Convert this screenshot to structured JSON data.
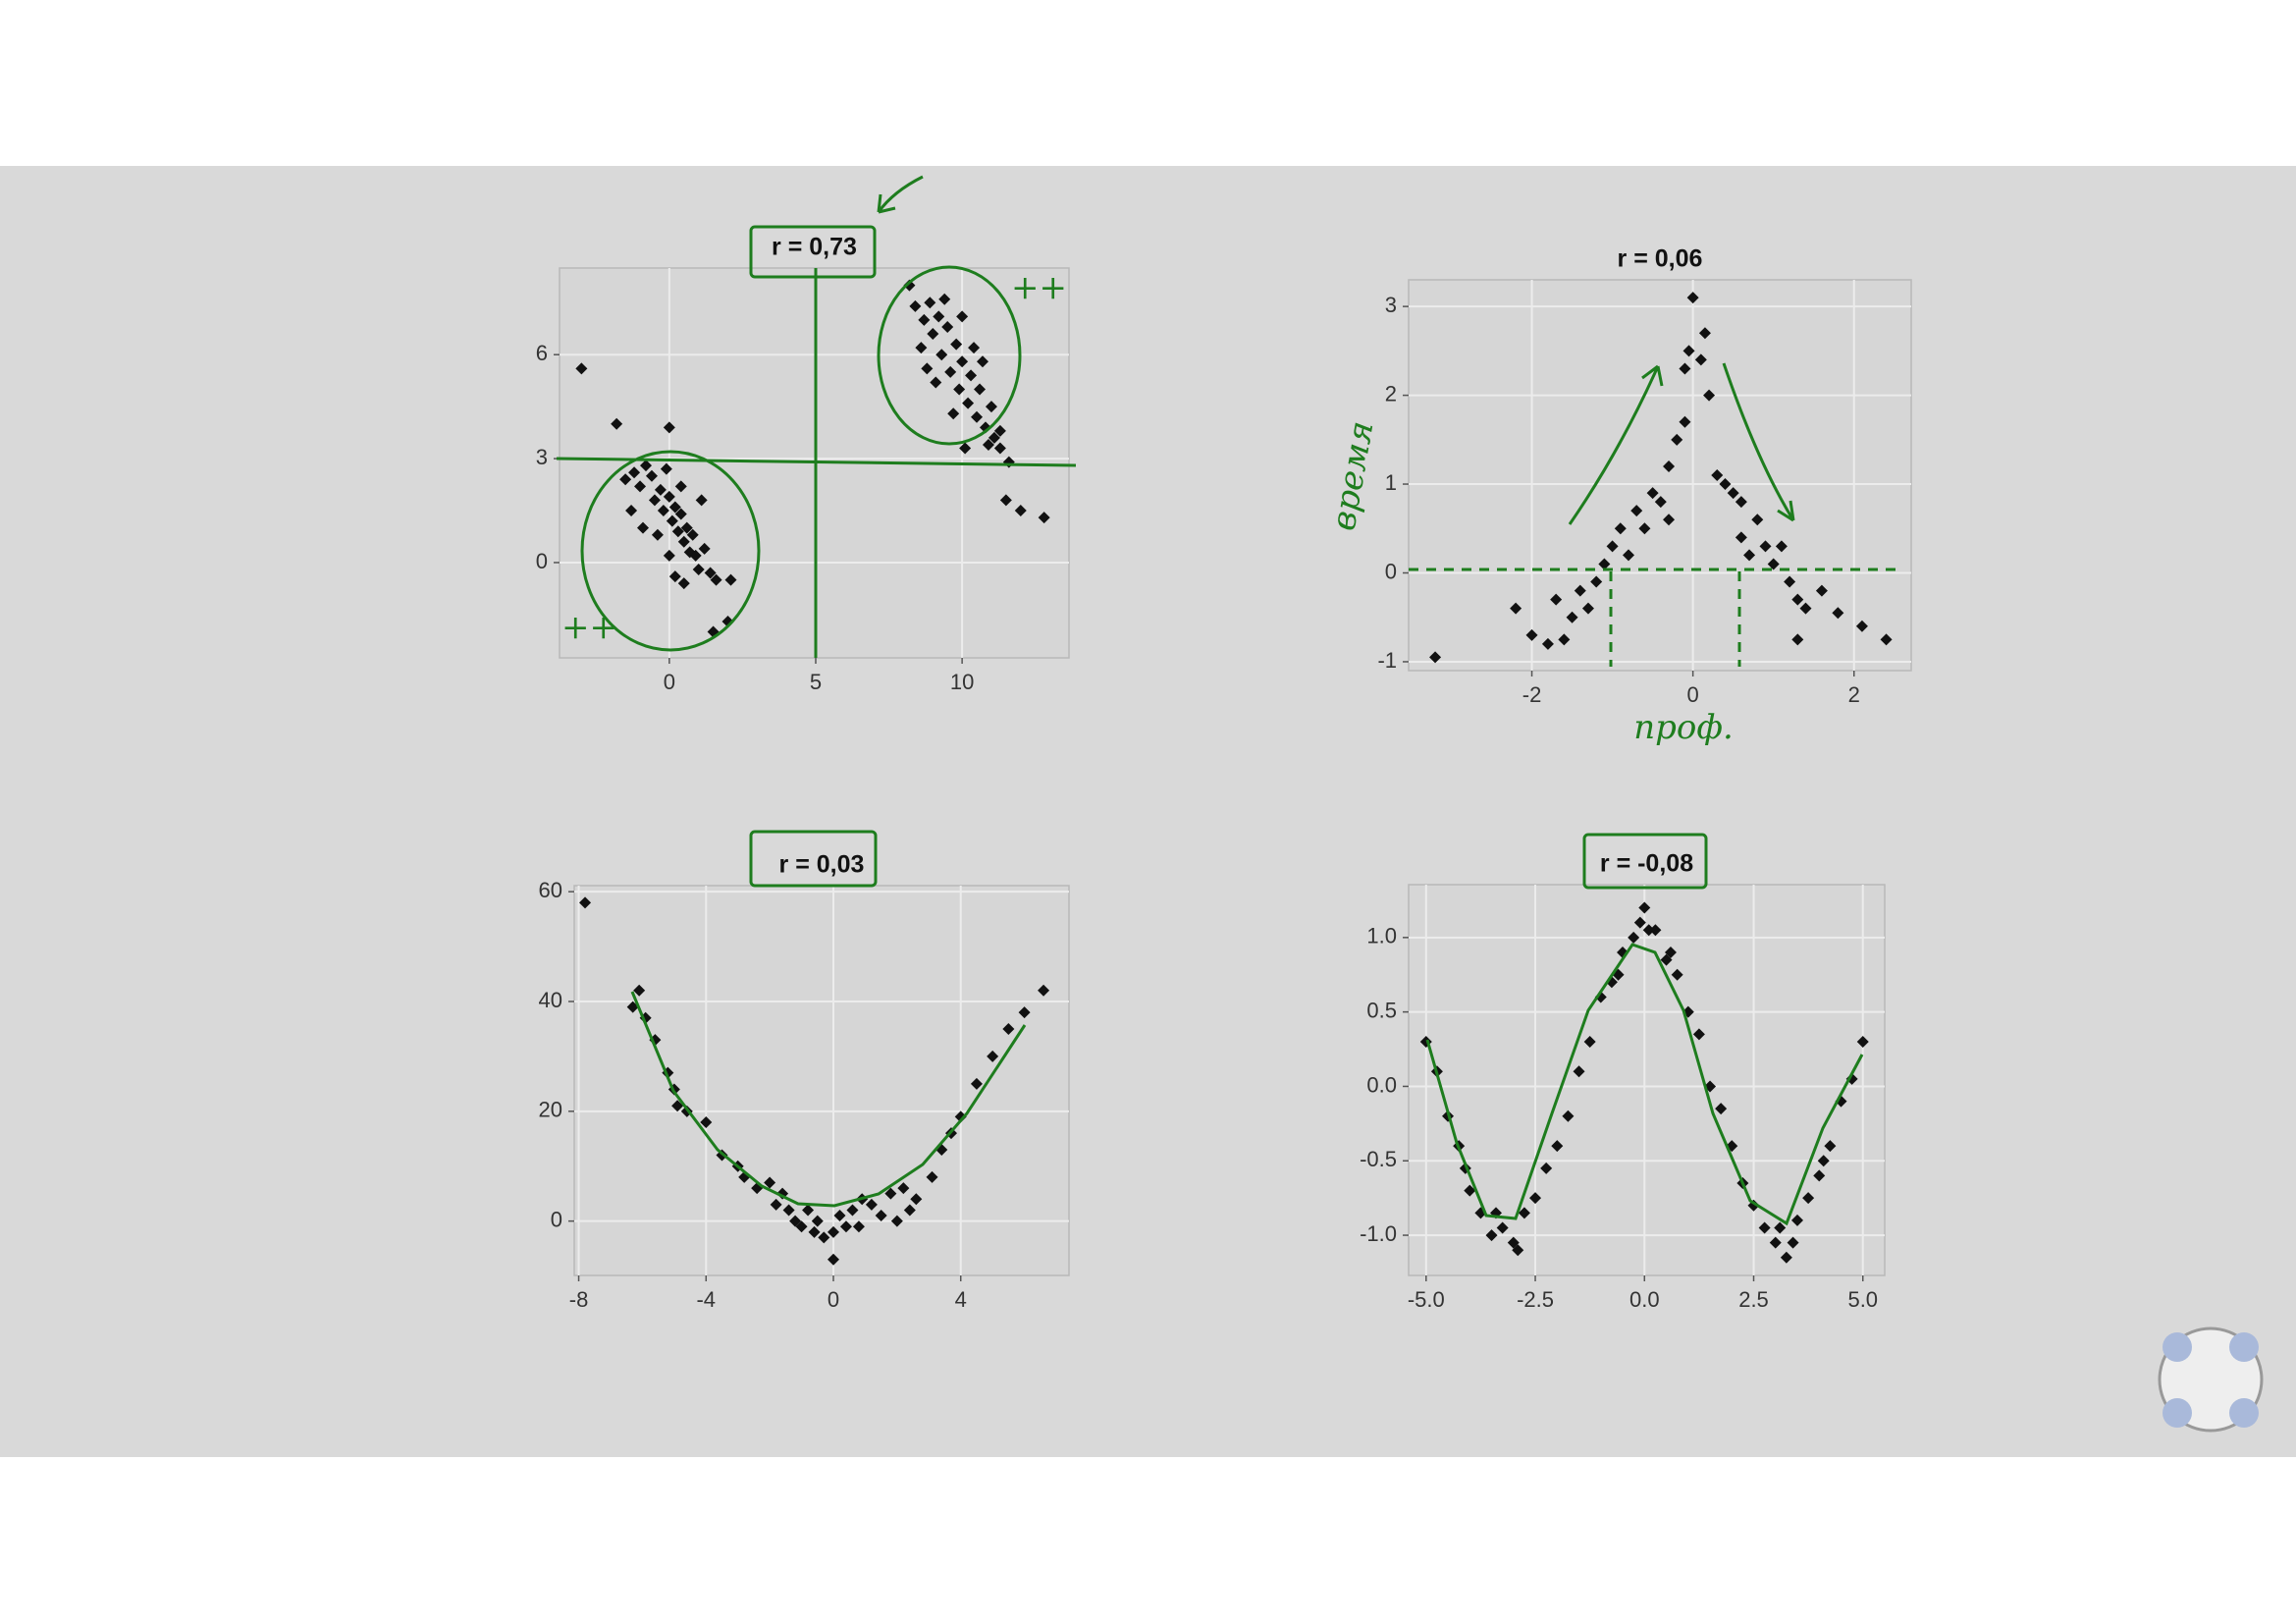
{
  "chart_data": [
    {
      "type": "scatter",
      "title": "r = 0,73",
      "color": "#111111",
      "grid": true,
      "annotations": [
        "++",
        "++"
      ],
      "xlim": [
        -3.75,
        13.65
      ],
      "ylim": [
        -2.75,
        8.5
      ],
      "xticks": [
        0,
        5,
        10
      ],
      "yticks": [
        0,
        3,
        6
      ],
      "x": [
        -1.5,
        -1.2,
        -1,
        -0.8,
        -0.6,
        -0.5,
        -0.3,
        -0.2,
        0,
        0.1,
        0.2,
        0.3,
        0.4,
        0.5,
        0.6,
        0.7,
        0.8,
        0.9,
        1,
        1.2,
        1.4,
        1.6,
        2.1,
        -1.3,
        -0.9,
        -0.4,
        0,
        0.2,
        0.5,
        -0.1,
        0.4,
        1.1,
        8.2,
        8.4,
        8.7,
        8.9,
        9,
        9.2,
        9.3,
        9.5,
        9.6,
        9.8,
        9.9,
        10,
        10.2,
        10.3,
        10.5,
        10.6,
        10.8,
        11,
        11.1,
        9.1,
        8.8,
        9.7,
        10.1,
        10.4,
        10.7,
        11.3,
        9.4,
        10,
        8.6,
        10.9,
        -3,
        -1.8,
        0,
        1.5,
        2,
        11.5,
        12,
        12.8,
        11.3,
        11.6
      ],
      "values": [
        2.4,
        2.6,
        2.2,
        2.8,
        2.5,
        1.8,
        2.1,
        1.5,
        1.9,
        1.2,
        1.6,
        0.9,
        1.4,
        0.6,
        1,
        0.3,
        0.8,
        0.2,
        -0.2,
        0.4,
        -0.3,
        -0.5,
        -0.5,
        1.5,
        1,
        0.8,
        0.2,
        -0.4,
        -0.6,
        2.7,
        2.2,
        1.8,
        8,
        7.4,
        7,
        7.5,
        6.6,
        7.1,
        6,
        6.8,
        5.5,
        6.3,
        5,
        5.8,
        4.6,
        5.4,
        4.2,
        5,
        3.9,
        4.5,
        3.6,
        5.2,
        5.6,
        4.3,
        3.3,
        6.2,
        5.8,
        3.8,
        7.6,
        7.1,
        6.2,
        3.4,
        5.6,
        4,
        3.9,
        -2,
        -1.7,
        1.8,
        1.5,
        1.3,
        3.3,
        2.9
      ]
    },
    {
      "type": "scatter",
      "title": "r = 0,06",
      "color": "#111111",
      "grid": true,
      "x_label": "проф.",
      "y_label": "время",
      "xlim": [
        -3.53,
        2.71
      ],
      "ylim": [
        -1.1,
        3.3
      ],
      "xticks": [
        -2,
        0,
        2
      ],
      "yticks": [
        -1,
        0,
        1,
        2,
        3
      ],
      "x": [
        -3.2,
        -2.2,
        -2,
        -1.8,
        -1.7,
        -1.5,
        -1.4,
        -1.3,
        -1.2,
        -1.1,
        -1,
        -0.9,
        -0.8,
        -0.7,
        -0.6,
        -0.5,
        -0.4,
        -0.3,
        -0.3,
        -0.2,
        -0.1,
        -0.1,
        -0.05,
        0,
        0.1,
        0.15,
        0.2,
        0.3,
        0.4,
        0.5,
        0.6,
        0.6,
        0.7,
        0.8,
        0.9,
        1,
        1.1,
        1.2,
        1.3,
        1.4,
        1.6,
        1.8,
        2.1,
        2.4,
        1.3,
        -1.6
      ],
      "values": [
        -0.95,
        -0.4,
        -0.7,
        -0.8,
        -0.3,
        -0.5,
        -0.2,
        -0.4,
        -0.1,
        0.1,
        0.3,
        0.5,
        0.2,
        0.7,
        0.5,
        0.9,
        0.8,
        1.2,
        0.6,
        1.5,
        1.7,
        2.3,
        2.5,
        3.1,
        2.4,
        2.7,
        2,
        1.1,
        1,
        0.9,
        0.8,
        0.4,
        0.2,
        0.6,
        0.3,
        0.1,
        0.3,
        -0.1,
        -0.3,
        -0.4,
        -0.2,
        -0.45,
        -0.6,
        -0.75,
        -0.75,
        -0.75
      ]
    },
    {
      "type": "scatter",
      "title": "r = 0,03",
      "color": "#111111",
      "grid": true,
      "xlim": [
        -8.14,
        7.4
      ],
      "ylim": [
        -9.9,
        61.1
      ],
      "xticks": [
        -8,
        -4,
        0,
        4
      ],
      "yticks": [
        0,
        20,
        40,
        60
      ],
      "x": [
        -7.8,
        -6.3,
        -6.1,
        -5.9,
        -5.6,
        -5.2,
        -5,
        -4.9,
        -4.6,
        -4,
        -3.5,
        -3,
        -2.8,
        -2.4,
        -2,
        -1.6,
        -1.4,
        -1.2,
        -1,
        -0.8,
        -0.5,
        -0.3,
        0,
        0,
        0.2,
        0.4,
        0.6,
        0.9,
        1.2,
        1.5,
        1.8,
        2,
        2.2,
        2.6,
        3.1,
        3.4,
        3.7,
        4,
        4.5,
        5,
        5.5,
        6,
        6.6,
        -0.6,
        0.8,
        -1.8,
        2.4
      ],
      "values": [
        58,
        39,
        42,
        37,
        33,
        27,
        24,
        21,
        20,
        18,
        12,
        10,
        8,
        6,
        7,
        5,
        2,
        0,
        -1,
        2,
        0,
        -3,
        -7,
        -2,
        1,
        -1,
        2,
        4,
        3,
        1,
        5,
        0,
        6,
        4,
        8,
        13,
        16,
        19,
        25,
        30,
        35,
        38,
        42,
        -2,
        -1,
        3,
        2
      ]
    },
    {
      "type": "scatter",
      "title": "r = -0,08",
      "color": "#111111",
      "grid": true,
      "xlim": [
        -5.4,
        5.5
      ],
      "ylim": [
        -1.27,
        1.355
      ],
      "xticks": [
        {
          "value": -5,
          "label": "-5.0"
        },
        -2.5,
        {
          "value": 0,
          "label": "0.0"
        },
        2.5,
        {
          "value": 5,
          "label": "5.0"
        }
      ],
      "yticks": [
        {
          "value": -1,
          "label": "-1.0"
        },
        -0.5,
        {
          "value": 0,
          "label": "0.0"
        },
        0.5,
        {
          "value": 1,
          "label": "1.0"
        }
      ],
      "x": [
        -5,
        -4.75,
        -4.5,
        -4.25,
        -4,
        -3.75,
        -3.5,
        -3.25,
        -3,
        -2.75,
        -2.5,
        -2.25,
        -2,
        -1.75,
        -1.5,
        -1.25,
        -1,
        -0.75,
        -0.5,
        -0.25,
        0,
        0.25,
        0.5,
        0.75,
        1,
        1.25,
        1.5,
        1.75,
        2,
        2.25,
        2.5,
        2.75,
        3,
        3.25,
        3.5,
        3.75,
        4,
        4.25,
        4.5,
        4.75,
        5,
        -3.4,
        -2.9,
        0.1,
        -0.1,
        3.1,
        3.4,
        -4.1,
        4.1,
        -0.6,
        0.6
      ],
      "values": [
        0.3,
        0.1,
        -0.2,
        -0.4,
        -0.7,
        -0.85,
        -1,
        -0.95,
        -1.05,
        -0.85,
        -0.75,
        -0.55,
        -0.4,
        -0.2,
        0.1,
        0.3,
        0.6,
        0.7,
        0.9,
        1,
        1.2,
        1.05,
        0.85,
        0.75,
        0.5,
        0.35,
        0,
        -0.15,
        -0.4,
        -0.65,
        -0.8,
        -0.95,
        -1.05,
        -1.15,
        -0.9,
        -0.75,
        -0.6,
        -0.4,
        -0.1,
        0.05,
        0.3,
        -0.85,
        -1.1,
        1.05,
        1.1,
        -0.95,
        -1.05,
        -0.55,
        -0.5,
        0.75,
        0.9
      ]
    }
  ]
}
